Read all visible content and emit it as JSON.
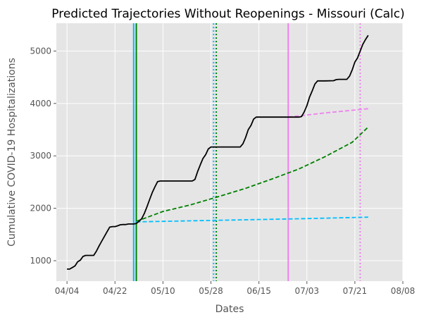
{
  "chart_data": {
    "type": "line",
    "title": "Predicted Trajectories Without Reopenings - Missouri (Calc)",
    "xlabel": "Dates",
    "ylabel": "Cumulative COVID-19 Hospitalizations",
    "x_axis": {
      "type": "date",
      "range": [
        "2020-03-31",
        "2020-08-08"
      ],
      "ticks": [
        "2020-04-04",
        "2020-04-22",
        "2020-05-10",
        "2020-05-28",
        "2020-06-15",
        "2020-07-03",
        "2020-07-21",
        "2020-08-08"
      ],
      "tick_labels": [
        "04/04",
        "04/22",
        "05/10",
        "05/28",
        "06/15",
        "07/03",
        "07/21",
        "08/08"
      ]
    },
    "y_axis": {
      "range": [
        610,
        5530
      ],
      "ticks": [
        1000,
        2000,
        3000,
        4000,
        5000
      ],
      "tick_labels": [
        "1000",
        "2000",
        "3000",
        "4000",
        "5000"
      ]
    },
    "grid": true,
    "series": [
      {
        "style": "solid",
        "color": "#000000",
        "points": [
          [
            "2020-04-04",
            840
          ],
          [
            "2020-04-05",
            840
          ],
          [
            "2020-04-06",
            870
          ],
          [
            "2020-04-07",
            900
          ],
          [
            "2020-04-08",
            980
          ],
          [
            "2020-04-09",
            1010
          ],
          [
            "2020-04-10",
            1080
          ],
          [
            "2020-04-11",
            1100
          ],
          [
            "2020-04-12",
            1100
          ],
          [
            "2020-04-14",
            1100
          ],
          [
            "2020-04-15",
            1180
          ],
          [
            "2020-04-16",
            1280
          ],
          [
            "2020-04-17",
            1370
          ],
          [
            "2020-04-18",
            1460
          ],
          [
            "2020-04-19",
            1550
          ],
          [
            "2020-04-20",
            1640
          ],
          [
            "2020-04-21",
            1650
          ],
          [
            "2020-04-22",
            1650
          ],
          [
            "2020-04-23",
            1665
          ],
          [
            "2020-04-24",
            1685
          ],
          [
            "2020-04-25",
            1690
          ],
          [
            "2020-04-26",
            1690
          ],
          [
            "2020-04-27",
            1700
          ],
          [
            "2020-04-28",
            1700
          ],
          [
            "2020-04-29",
            1700
          ],
          [
            "2020-04-30",
            1710
          ],
          [
            "2020-05-01",
            1750
          ],
          [
            "2020-05-02",
            1800
          ],
          [
            "2020-05-03",
            1900
          ],
          [
            "2020-05-04",
            2030
          ],
          [
            "2020-05-05",
            2170
          ],
          [
            "2020-05-06",
            2300
          ],
          [
            "2020-05-07",
            2410
          ],
          [
            "2020-05-08",
            2510
          ],
          [
            "2020-05-09",
            2520
          ],
          [
            "2020-05-15",
            2520
          ],
          [
            "2020-05-21",
            2520
          ],
          [
            "2020-05-22",
            2550
          ],
          [
            "2020-05-23",
            2700
          ],
          [
            "2020-05-24",
            2830
          ],
          [
            "2020-05-25",
            2950
          ],
          [
            "2020-05-26",
            3020
          ],
          [
            "2020-05-27",
            3130
          ],
          [
            "2020-05-28",
            3170
          ],
          [
            "2020-06-05",
            3170
          ],
          [
            "2020-06-08",
            3170
          ],
          [
            "2020-06-09",
            3230
          ],
          [
            "2020-06-10",
            3350
          ],
          [
            "2020-06-11",
            3500
          ],
          [
            "2020-06-12",
            3580
          ],
          [
            "2020-06-13",
            3700
          ],
          [
            "2020-06-14",
            3740
          ],
          [
            "2020-06-20",
            3740
          ],
          [
            "2020-06-26",
            3740
          ],
          [
            "2020-06-30",
            3740
          ],
          [
            "2020-07-01",
            3750
          ],
          [
            "2020-07-02",
            3840
          ],
          [
            "2020-07-03",
            3960
          ],
          [
            "2020-07-04",
            4120
          ],
          [
            "2020-07-05",
            4240
          ],
          [
            "2020-07-06",
            4370
          ],
          [
            "2020-07-07",
            4430
          ],
          [
            "2020-07-10",
            4430
          ],
          [
            "2020-07-13",
            4435
          ],
          [
            "2020-07-14",
            4455
          ],
          [
            "2020-07-15",
            4460
          ],
          [
            "2020-07-18",
            4460
          ],
          [
            "2020-07-19",
            4520
          ],
          [
            "2020-07-20",
            4640
          ],
          [
            "2020-07-21",
            4790
          ],
          [
            "2020-07-22",
            4870
          ],
          [
            "2020-07-23",
            5000
          ],
          [
            "2020-07-24",
            5130
          ],
          [
            "2020-07-25",
            5220
          ],
          [
            "2020-07-26",
            5300
          ]
        ]
      },
      {
        "style": "dashed",
        "color": "#008000",
        "points": [
          [
            "2020-04-30",
            1750
          ],
          [
            "2020-05-10",
            1940
          ],
          [
            "2020-05-20",
            2060
          ],
          [
            "2020-05-30",
            2210
          ],
          [
            "2020-06-10",
            2380
          ],
          [
            "2020-06-20",
            2560
          ],
          [
            "2020-06-30",
            2750
          ],
          [
            "2020-07-10",
            2990
          ],
          [
            "2020-07-20",
            3260
          ],
          [
            "2020-07-26",
            3550
          ]
        ]
      },
      {
        "style": "dashed",
        "color": "#00bfff",
        "points": [
          [
            "2020-04-30",
            1740
          ],
          [
            "2020-05-30",
            1770
          ],
          [
            "2020-06-30",
            1800
          ],
          [
            "2020-07-26",
            1830
          ]
        ]
      },
      {
        "style": "dashed",
        "color": "#ee82ee",
        "points": [
          [
            "2020-06-26",
            3740
          ],
          [
            "2020-07-10",
            3820
          ],
          [
            "2020-07-26",
            3900
          ]
        ]
      }
    ],
    "vertical_lines": [
      {
        "x": "2020-04-29",
        "style": "solid",
        "color": "#00bfff"
      },
      {
        "x": "2020-04-30",
        "style": "solid",
        "color": "#008000"
      },
      {
        "x": "2020-05-29",
        "style": "dotted",
        "color": "#00bfff"
      },
      {
        "x": "2020-05-30",
        "style": "dotted",
        "color": "#008000"
      },
      {
        "x": "2020-06-26",
        "style": "solid",
        "color": "#ee82ee"
      },
      {
        "x": "2020-07-23",
        "style": "dotted",
        "color": "#ee82ee"
      }
    ]
  }
}
